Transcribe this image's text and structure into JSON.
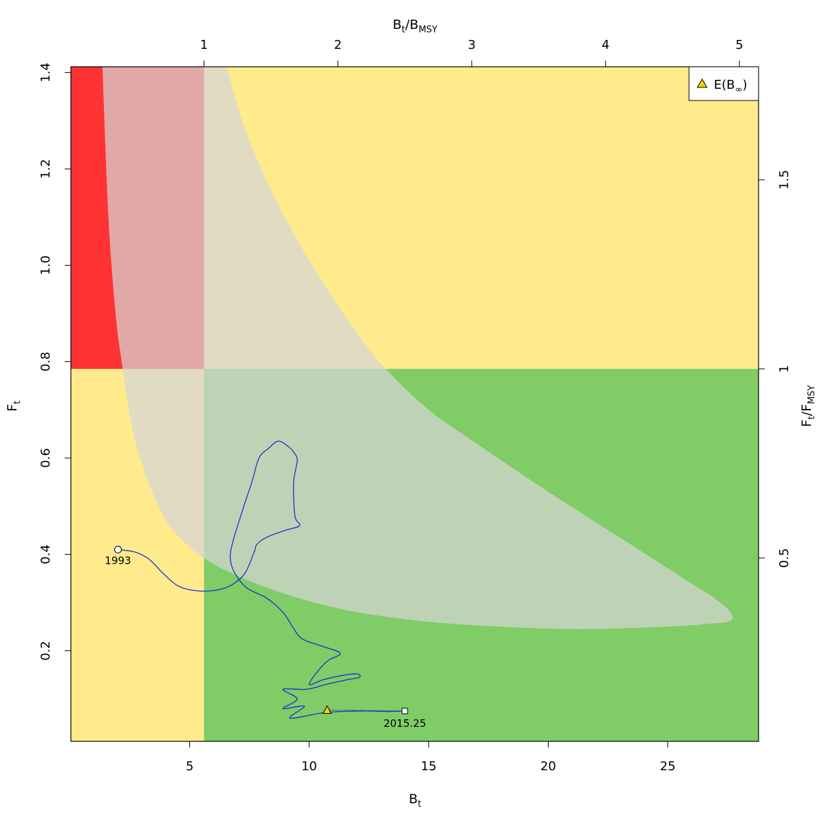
{
  "chart_data": {
    "type": "line",
    "axes": {
      "bottom": {
        "label_main": "B",
        "label_sub": "t",
        "range": [
          0.03,
          28.8
        ],
        "ticks": [
          5,
          10,
          15,
          20,
          25
        ]
      },
      "left": {
        "label_main": "F",
        "label_sub": "t",
        "range": [
          0.012,
          1.412
        ],
        "ticks": [
          0.2,
          0.4,
          0.6,
          0.8,
          1.0,
          1.2,
          1.4
        ],
        "tick_labels": [
          "0.2",
          "0.4",
          "0.6",
          "0.8",
          "1.0",
          "1.2",
          "1.4"
        ]
      },
      "top": {
        "label_main": "B",
        "label_sub_1": "t",
        "label_sep": "/B",
        "label_sub_2": "MSY",
        "ticks": [
          1,
          2,
          3,
          4,
          5
        ],
        "data_per_unit": 5.6
      },
      "right": {
        "label_main": "F",
        "label_sub_1": "t",
        "label_sep": "/F",
        "label_sub_2": "MSY",
        "ticks": [
          0.5,
          1,
          1.5
        ],
        "tick_labels": [
          "0.5",
          "1",
          "1.5"
        ],
        "data_per_unit": 0.785
      }
    },
    "reference_points": {
      "Bmsy": 5.6,
      "Fmsy": 0.785
    },
    "zones": [
      {
        "name": "overfished-overfishing",
        "color": "#ff3333"
      },
      {
        "name": "yellow-zone",
        "color": "#ffeb8c"
      },
      {
        "name": "green-zone",
        "color": "#80cc66"
      },
      {
        "name": "confidence-region",
        "color": "#d6d6d6",
        "opacity": 0.72
      }
    ],
    "confidence_region": {
      "upper": [
        [
          1.35,
          1.412
        ],
        [
          1.6,
          1.1
        ],
        [
          1.9,
          0.9
        ],
        [
          2.2,
          0.785
        ],
        [
          2.6,
          0.66
        ],
        [
          3.2,
          0.56
        ],
        [
          4.0,
          0.47
        ],
        [
          5.0,
          0.415
        ],
        [
          6.0,
          0.38
        ],
        [
          7.5,
          0.345
        ],
        [
          9.5,
          0.31
        ],
        [
          12,
          0.28
        ],
        [
          15,
          0.26
        ],
        [
          18,
          0.25
        ],
        [
          21,
          0.245
        ],
        [
          24,
          0.248
        ],
        [
          26.5,
          0.255
        ],
        [
          27.7,
          0.265
        ]
      ],
      "lower": [
        [
          27.7,
          0.265
        ],
        [
          27.2,
          0.3
        ],
        [
          25.5,
          0.355
        ],
        [
          23,
          0.435
        ],
        [
          20,
          0.53
        ],
        [
          17,
          0.63
        ],
        [
          15,
          0.7
        ],
        [
          13.2,
          0.785
        ],
        [
          12,
          0.86
        ],
        [
          10.5,
          0.97
        ],
        [
          9.2,
          1.08
        ],
        [
          8,
          1.2
        ],
        [
          7.2,
          1.3
        ],
        [
          6.55,
          1.412
        ]
      ]
    },
    "trajectory": {
      "color": "#1f2ecc",
      "points": [
        [
          2.0,
          0.41
        ],
        [
          2.7,
          0.405
        ],
        [
          3.3,
          0.39
        ],
        [
          3.9,
          0.36
        ],
        [
          4.5,
          0.335
        ],
        [
          5.2,
          0.325
        ],
        [
          6.0,
          0.325
        ],
        [
          6.7,
          0.335
        ],
        [
          7.3,
          0.36
        ],
        [
          7.7,
          0.405
        ],
        [
          7.8,
          0.42
        ],
        [
          8.2,
          0.435
        ],
        [
          9.0,
          0.45
        ],
        [
          9.6,
          0.46
        ],
        [
          9.4,
          0.48
        ],
        [
          9.35,
          0.55
        ],
        [
          9.5,
          0.595
        ],
        [
          9.35,
          0.612
        ],
        [
          9.1,
          0.625
        ],
        [
          8.7,
          0.635
        ],
        [
          8.3,
          0.62
        ],
        [
          7.9,
          0.6
        ],
        [
          7.6,
          0.55
        ],
        [
          7.2,
          0.49
        ],
        [
          6.8,
          0.425
        ],
        [
          6.7,
          0.39
        ],
        [
          6.9,
          0.36
        ],
        [
          7.4,
          0.33
        ],
        [
          8.2,
          0.31
        ],
        [
          8.9,
          0.28
        ],
        [
          9.3,
          0.25
        ],
        [
          9.7,
          0.225
        ],
        [
          10.5,
          0.21
        ],
        [
          11.3,
          0.195
        ],
        [
          10.8,
          0.18
        ],
        [
          10.4,
          0.16
        ],
        [
          10.0,
          0.13
        ],
        [
          10.6,
          0.14
        ],
        [
          11.3,
          0.148
        ],
        [
          12.0,
          0.152
        ],
        [
          12.1,
          0.145
        ],
        [
          11.6,
          0.14
        ],
        [
          10.7,
          0.13
        ],
        [
          9.9,
          0.12
        ],
        [
          8.9,
          0.12
        ],
        [
          9.5,
          0.1
        ],
        [
          8.9,
          0.08
        ],
        [
          9.8,
          0.085
        ],
        [
          9.2,
          0.06
        ],
        [
          10.7,
          0.072
        ],
        [
          12.3,
          0.075
        ],
        [
          13.2,
          0.074
        ],
        [
          14.0,
          0.075
        ]
      ]
    },
    "start_point": {
      "x": 2.0,
      "y": 0.41,
      "label": "1993"
    },
    "end_point": {
      "x": 14.0,
      "y": 0.075,
      "label": "2015.25"
    },
    "expected_point": {
      "x": 10.75,
      "y": 0.077,
      "color": "#ffcc00"
    },
    "legend": {
      "position": "top-right",
      "marker": "triangle",
      "label_main": "E(B",
      "label_sub": "∞",
      "label_end": ")"
    }
  }
}
